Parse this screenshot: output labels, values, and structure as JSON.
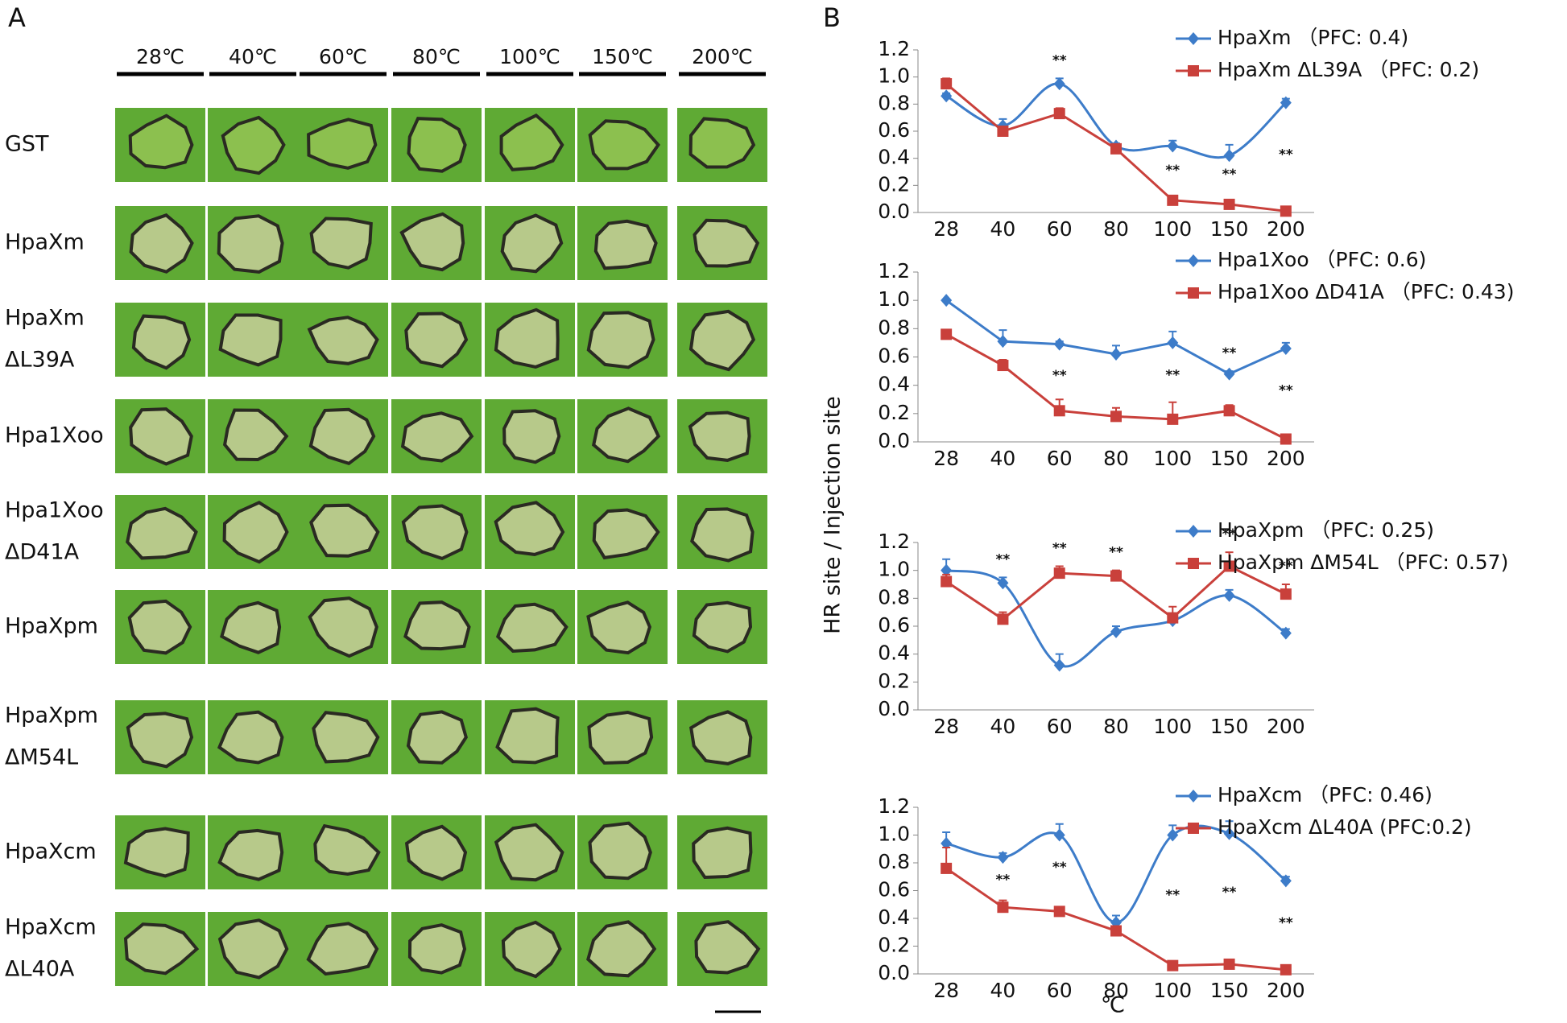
{
  "panel_a": {
    "label": "A",
    "columns": [
      "28℃",
      "40℃",
      "60℃",
      "80℃",
      "100℃",
      "150℃",
      "200℃"
    ],
    "rows": [
      [
        "GST"
      ],
      [
        "HpaXm"
      ],
      [
        "HpaXm",
        "ΔL39A"
      ],
      [
        "Hpa1Xoo"
      ],
      [
        "Hpa1Xoo",
        "ΔD41A"
      ],
      [
        "HpaXpm"
      ],
      [
        "HpaXpm",
        "ΔM54L"
      ],
      [
        "HpaXcm"
      ],
      [
        "HpaXcm",
        "ΔL40A"
      ]
    ]
  },
  "panel_b": {
    "label": "B",
    "ylabel": "HR site / Injection site",
    "xlabel": "℃"
  },
  "chart_data": [
    {
      "type": "line",
      "categories": [
        "28",
        "40",
        "60",
        "80",
        "100",
        "150",
        "200"
      ],
      "ylim": [
        0,
        1.2
      ],
      "yticks": [
        {
          "value": 0,
          "label": "0.0"
        },
        {
          "value": 0.2,
          "label": "0.2"
        },
        {
          "value": 0.4,
          "label": "0.4"
        },
        {
          "value": 0.6,
          "label": "0.6"
        },
        {
          "value": 0.8,
          "label": "0.8"
        },
        {
          "value": 1,
          "label": "1.0"
        },
        {
          "value": 1.2,
          "label": "1.2"
        }
      ],
      "significance": [
        null,
        null,
        "**",
        null,
        "**",
        "**",
        "**"
      ],
      "series": [
        {
          "name": "HpaXm （PFC: 0.4)",
          "color": "#3d7cc9",
          "marker": "diamond",
          "smooth": true,
          "values": [
            0.86,
            0.64,
            0.95,
            0.49,
            0.49,
            0.42,
            0.81
          ],
          "errors": [
            0.02,
            0.05,
            0.04,
            0.02,
            0.04,
            0.08,
            0.03
          ]
        },
        {
          "name": "HpaXm ΔL39A （PFC: 0.2)",
          "color": "#c9403b",
          "marker": "square",
          "smooth": false,
          "values": [
            0.95,
            0.6,
            0.73,
            0.47,
            0.09,
            0.06,
            0.01
          ],
          "errors": [
            0.04,
            0.02,
            0.04,
            0.02,
            0.02,
            0.02,
            0.01
          ]
        }
      ]
    },
    {
      "type": "line",
      "categories": [
        "28",
        "40",
        "60",
        "80",
        "100",
        "150",
        "200"
      ],
      "ylim": [
        0,
        1.2
      ],
      "yticks": [
        {
          "value": 0,
          "label": "0.0"
        },
        {
          "value": 0.2,
          "label": "0.2"
        },
        {
          "value": 0.4,
          "label": "0.4"
        },
        {
          "value": 0.6,
          "label": "0.6"
        },
        {
          "value": 0.8,
          "label": "0.8"
        },
        {
          "value": 1,
          "label": "1.0"
        },
        {
          "value": 1.2,
          "label": "1.2"
        }
      ],
      "significance": [
        null,
        null,
        "**",
        null,
        "**",
        "**",
        "**"
      ],
      "series": [
        {
          "name": "Hpa1Xoo （PFC: 0.6)",
          "color": "#3d7cc9",
          "marker": "diamond",
          "smooth": false,
          "values": [
            1.0,
            0.71,
            0.69,
            0.62,
            0.7,
            0.48,
            0.66
          ],
          "errors": [
            0,
            0.08,
            0.02,
            0.06,
            0.08,
            0.02,
            0.04
          ]
        },
        {
          "name": "Hpa1Xoo ΔD41A （PFC: 0.43)",
          "color": "#c9403b",
          "marker": "square",
          "smooth": false,
          "values": [
            0.76,
            0.54,
            0.22,
            0.18,
            0.16,
            0.22,
            0.02
          ],
          "errors": [
            0,
            0.04,
            0.08,
            0.06,
            0.12,
            0.04,
            0.02
          ]
        }
      ]
    },
    {
      "type": "line",
      "categories": [
        "28",
        "40",
        "60",
        "80",
        "100",
        "150",
        "200"
      ],
      "ylim": [
        0,
        1.2
      ],
      "yticks": [
        {
          "value": 0,
          "label": "0.0"
        },
        {
          "value": 0.2,
          "label": "0.2"
        },
        {
          "value": 0.4,
          "label": "0.4"
        },
        {
          "value": 0.6,
          "label": "0.6"
        },
        {
          "value": 0.8,
          "label": "0.8"
        },
        {
          "value": 1,
          "label": "1.0"
        },
        {
          "value": 1.2,
          "label": "1.2"
        }
      ],
      "significance": [
        null,
        "**",
        "**",
        "**",
        null,
        "**",
        "**"
      ],
      "series": [
        {
          "name": "HpaXpm （PFC: 0.25)",
          "color": "#3d7cc9",
          "marker": "diamond",
          "smooth": true,
          "values": [
            1.0,
            0.91,
            0.32,
            0.56,
            0.64,
            0.82,
            0.55
          ],
          "errors": [
            0.08,
            0.04,
            0.08,
            0.04,
            0.04,
            0.04,
            0.03
          ]
        },
        {
          "name": "HpaXpm ΔM54L （PFC: 0.57)",
          "color": "#c9403b",
          "marker": "square",
          "smooth": false,
          "values": [
            0.92,
            0.65,
            0.98,
            0.96,
            0.66,
            1.03,
            0.83
          ],
          "errors": [
            0.05,
            0.05,
            0.05,
            0.04,
            0.08,
            0.1,
            0.07
          ]
        }
      ]
    },
    {
      "type": "line",
      "categories": [
        "28",
        "40",
        "60",
        "80",
        "100",
        "150",
        "200"
      ],
      "ylim": [
        0,
        1.2
      ],
      "yticks": [
        {
          "value": 0,
          "label": "0.0"
        },
        {
          "value": 0.2,
          "label": "0.2"
        },
        {
          "value": 0.4,
          "label": "0.4"
        },
        {
          "value": 0.6,
          "label": "0.6"
        },
        {
          "value": 0.8,
          "label": "0.8"
        },
        {
          "value": 1,
          "label": "1.0"
        },
        {
          "value": 1.2,
          "label": "1.2"
        }
      ],
      "significance": [
        null,
        "**",
        "**",
        null,
        "**",
        "**",
        "**"
      ],
      "series": [
        {
          "name": "HpaXcm （PFC: 0.46)",
          "color": "#3d7cc9",
          "marker": "diamond",
          "smooth": true,
          "values": [
            0.94,
            0.84,
            1.0,
            0.37,
            1.0,
            1.01,
            0.67
          ],
          "errors": [
            0.08,
            0.03,
            0.08,
            0.05,
            0.07,
            0.09,
            0.03
          ]
        },
        {
          "name": "HpaXcm ΔL40A (PFC:0.2)",
          "color": "#c9403b",
          "marker": "square",
          "smooth": false,
          "values": [
            0.76,
            0.48,
            0.45,
            0.31,
            0.06,
            0.07,
            0.03
          ],
          "errors": [
            0.15,
            0.05,
            0.03,
            0.03,
            0.01,
            0.02,
            0.01
          ]
        }
      ]
    }
  ]
}
